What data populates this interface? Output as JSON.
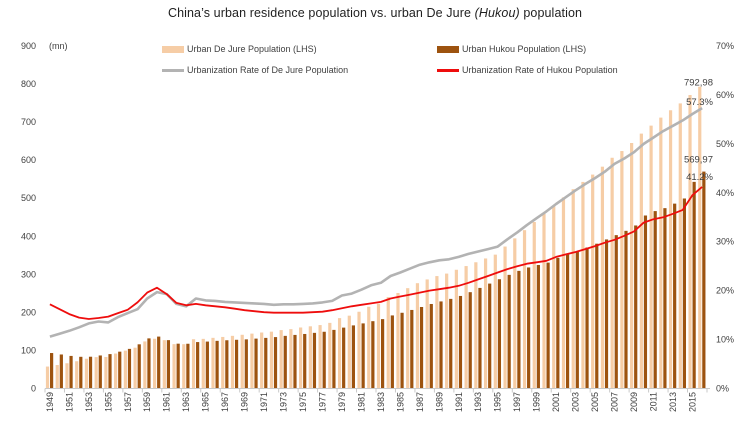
{
  "title": {
    "pre": "China’s urban residence population vs. urban De Jure ",
    "italic": "(Hukou)",
    "post": " population"
  },
  "legend": [
    {
      "label": "Urban De Jure Population (LHS)",
      "type": "bar",
      "color": "#f6cda6"
    },
    {
      "label": "Urban Hukou Population (LHS)",
      "type": "bar",
      "color": "#9d530f"
    },
    {
      "label": "Urbanization Rate of De Jure Population",
      "type": "line",
      "color": "#b3b3b3"
    },
    {
      "label": "Urbanization Rate of Hukou Population",
      "type": "line",
      "color": "#ee0d0d"
    }
  ],
  "chart_data": {
    "type": "bar",
    "subtype": "grouped bars with two overlay lines (dual axis)",
    "title": "China’s urban residence population vs. urban De Jure (Hukou) population",
    "left_axis": {
      "min": 0,
      "max": 900,
      "step": 100,
      "unit": "(mn)"
    },
    "right_axis": {
      "min": 0,
      "max": 70,
      "step": 10,
      "suffix": "%"
    },
    "grid": "off",
    "legend_position": "top",
    "xticklabels": [
      "1949",
      "1951",
      "1953",
      "1955",
      "1957",
      "1959",
      "1961",
      "1963",
      "1965",
      "1967",
      "1969",
      "1971",
      "1973",
      "1975",
      "1977",
      "1979",
      "1981",
      "1983",
      "1985",
      "1987",
      "1989",
      "1991",
      "1993",
      "1995",
      "1997",
      "1999",
      "2001",
      "2003",
      "2005",
      "2007",
      "2009",
      "2011",
      "2013",
      "2015"
    ],
    "years": [
      1949,
      1950,
      1951,
      1952,
      1953,
      1954,
      1955,
      1956,
      1957,
      1958,
      1959,
      1960,
      1961,
      1962,
      1963,
      1964,
      1965,
      1966,
      1967,
      1968,
      1969,
      1970,
      1971,
      1972,
      1973,
      1974,
      1975,
      1976,
      1977,
      1978,
      1979,
      1980,
      1981,
      1982,
      1983,
      1984,
      1985,
      1986,
      1987,
      1988,
      1989,
      1990,
      1991,
      1992,
      1993,
      1994,
      1995,
      1996,
      1997,
      1998,
      1999,
      2000,
      2001,
      2002,
      2003,
      2004,
      2005,
      2006,
      2007,
      2008,
      2009,
      2010,
      2011,
      2012,
      2013,
      2014,
      2015,
      2016
    ],
    "series": [
      {
        "name": "Urban De Jure Population (LHS)",
        "type": "bar",
        "axis": "left",
        "unit": "mn",
        "values": [
          57.65,
          61.69,
          66.32,
          71.63,
          78.26,
          82.49,
          82.85,
          91.85,
          99.49,
          107.21,
          123.71,
          130.73,
          127.07,
          116.59,
          116.46,
          129.5,
          130.45,
          133.13,
          135.48,
          138.38,
          141.17,
          144.24,
          147.11,
          149.35,
          153.45,
          155.95,
          160.3,
          163.41,
          166.69,
          172.45,
          184.95,
          191.4,
          201.71,
          214.8,
          222.74,
          240.17,
          250.94,
          263.66,
          276.74,
          286.61,
          295.4,
          301.95,
          312.03,
          321.75,
          331.73,
          341.69,
          351.74,
          373.04,
          394.49,
          416.08,
          437.48,
          459.06,
          480.64,
          502.12,
          523.76,
          542.83,
          562.12,
          582.88,
          606.33,
          624.03,
          645.12,
          669.78,
          690.79,
          711.82,
          731.11,
          749.16,
          771.16,
          792.98
        ]
      },
      {
        "name": "Urban Hukou Population (LHS)",
        "type": "bar",
        "axis": "left",
        "unit": "mn",
        "values": [
          93.2,
          89.4,
          85.6,
          83.3,
          83.5,
          86.8,
          90.4,
          96.8,
          104.1,
          116.1,
          131.7,
          136.4,
          127.1,
          117.8,
          117.6,
          122.0,
          123.3,
          125.2,
          126.8,
          128.0,
          129.1,
          131.1,
          133.0,
          135.1,
          138.3,
          140.8,
          143.3,
          146.2,
          149.1,
          154.0,
          160.0,
          165.8,
          171.1,
          176.9,
          182.3,
          192.0,
          199.0,
          206.4,
          214.2,
          222.1,
          228.8,
          235.5,
          243.2,
          253.1,
          264.3,
          275.7,
          287.1,
          298.6,
          309.1,
          318.1,
          324.5,
          330.8,
          343.3,
          352.0,
          360.5,
          370.5,
          380.5,
          391.7,
          403.0,
          414.3,
          428.4,
          454.6,
          466.2,
          473.9,
          485.8,
          499.3,
          543.0,
          569.97
        ]
      },
      {
        "name": "Urbanization Rate of De Jure Population",
        "type": "line",
        "axis": "right",
        "unit": "%",
        "values": [
          10.6,
          11.2,
          11.8,
          12.5,
          13.3,
          13.7,
          13.5,
          14.6,
          15.4,
          16.2,
          18.4,
          19.7,
          19.3,
          17.3,
          16.8,
          18.4,
          18.0,
          17.9,
          17.7,
          17.6,
          17.5,
          17.4,
          17.3,
          17.1,
          17.2,
          17.2,
          17.3,
          17.4,
          17.6,
          17.9,
          19.0,
          19.4,
          20.2,
          21.1,
          21.6,
          23.0,
          23.7,
          24.5,
          25.3,
          25.8,
          26.2,
          26.4,
          26.9,
          27.5,
          28.0,
          28.5,
          29.0,
          30.5,
          31.9,
          33.4,
          34.8,
          36.2,
          37.7,
          39.1,
          40.5,
          41.8,
          43.0,
          44.3,
          45.9,
          47.0,
          48.3,
          50.0,
          51.3,
          52.6,
          53.7,
          54.8,
          56.1,
          57.3
        ]
      },
      {
        "name": "Urbanization Rate of Hukou Population",
        "type": "line",
        "axis": "right",
        "unit": "%",
        "values": [
          17.2,
          16.2,
          15.2,
          14.5,
          14.2,
          14.4,
          14.7,
          15.4,
          16.1,
          17.6,
          19.6,
          20.6,
          19.3,
          17.5,
          17.0,
          17.3,
          17.0,
          16.8,
          16.6,
          16.3,
          16.0,
          15.8,
          15.6,
          15.5,
          15.5,
          15.5,
          15.5,
          15.6,
          15.7,
          16.0,
          16.4,
          16.8,
          17.1,
          17.4,
          17.7,
          18.4,
          18.8,
          19.2,
          19.6,
          20.0,
          20.3,
          20.6,
          21.0,
          21.6,
          22.3,
          23.0,
          23.7,
          24.4,
          25.0,
          25.5,
          25.8,
          26.1,
          26.9,
          27.4,
          27.9,
          28.5,
          29.1,
          29.8,
          30.4,
          31.2,
          32.1,
          33.9,
          34.6,
          35.0,
          35.7,
          36.5,
          39.5,
          41.2
        ]
      }
    ],
    "annotations": [
      {
        "text": "792,98",
        "axis": "left",
        "value": 792.98,
        "year": 2016
      },
      {
        "text": "57.3%",
        "axis": "right",
        "value": 57.3,
        "year": 2016
      },
      {
        "text": "569,97",
        "axis": "left",
        "value": 569.97,
        "year": 2016
      },
      {
        "text": "41.2%",
        "axis": "right",
        "value": 41.2,
        "year": 2016
      }
    ],
    "colors": {
      "de_jure_bar": "#f6cda6",
      "hukou_bar": "#9d530f",
      "de_jure_line": "#b3b3b3",
      "hukou_line": "#ee0d0d",
      "text": "#3f3f3f",
      "axis": "#c9c9c9",
      "title": "#1f1f1f"
    }
  }
}
